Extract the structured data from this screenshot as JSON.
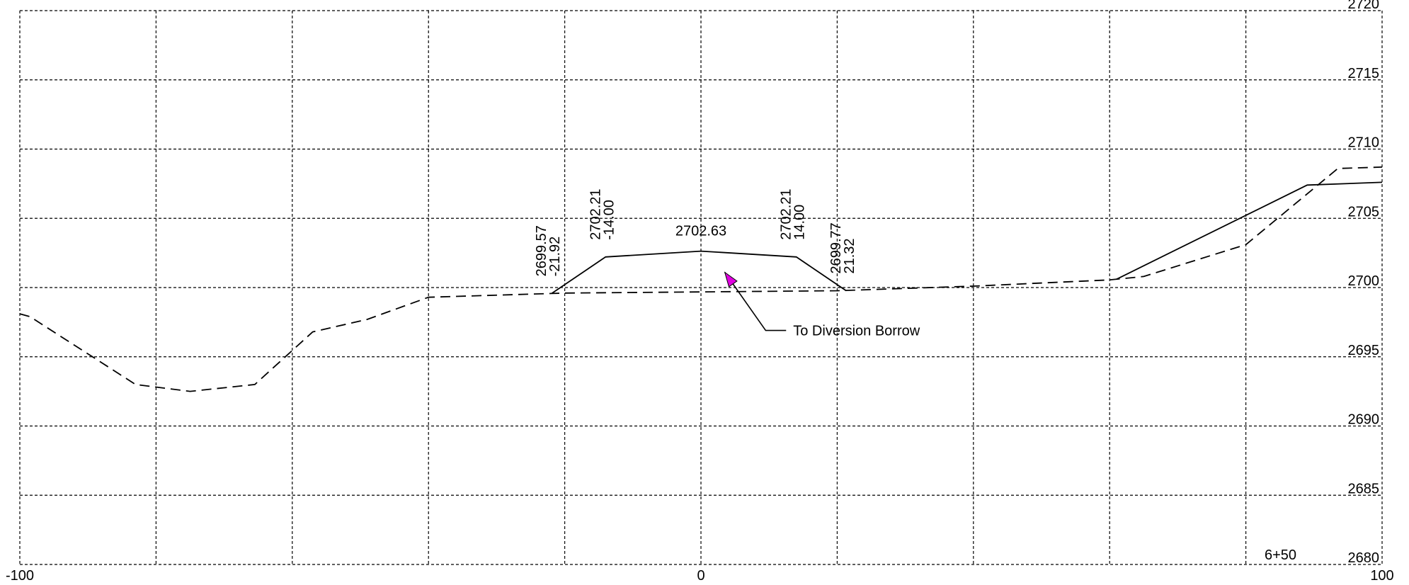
{
  "chart_data": {
    "type": "line",
    "title": "",
    "station": "6+50",
    "xlabel": "",
    "ylabel": "",
    "xlim": [
      -100,
      100
    ],
    "ylim": [
      2680,
      2720
    ],
    "x_ticks": [
      -100,
      0,
      100
    ],
    "y_ticks": [
      2720,
      2715,
      2710,
      2705,
      2700,
      2695,
      2690,
      2685,
      2680
    ],
    "x_grid": [
      -100,
      -80,
      -60,
      -40,
      -20,
      0,
      20,
      40,
      60,
      80,
      100
    ],
    "grid": true,
    "series": [
      {
        "style": "dashed",
        "color": "#000000",
        "points": [
          [
            -100,
            2698.1
          ],
          [
            -98.5,
            2697.9
          ],
          [
            -83,
            2693.0
          ],
          [
            -75,
            2692.5
          ],
          [
            -65.5,
            2693.0
          ],
          [
            -57,
            2696.8
          ],
          [
            -49,
            2697.7
          ],
          [
            -40,
            2699.3
          ],
          [
            -22,
            2699.57
          ],
          [
            -20,
            2699.6
          ],
          [
            20,
            2699.77
          ],
          [
            40,
            2700.1
          ],
          [
            60,
            2700.55
          ],
          [
            65,
            2700.8
          ],
          [
            80,
            2703.1
          ],
          [
            93.5,
            2708.6
          ],
          [
            100,
            2708.7
          ]
        ]
      },
      {
        "style": "solid",
        "color": "#000000",
        "points": [
          [
            -21.92,
            2699.57
          ],
          [
            -14.0,
            2702.21
          ],
          [
            0,
            2702.63
          ],
          [
            14.0,
            2702.21
          ],
          [
            21.32,
            2699.77
          ]
        ]
      },
      {
        "style": "solid",
        "color": "#000000",
        "points": [
          [
            61,
            2700.6
          ],
          [
            89,
            2707.4
          ],
          [
            100,
            2707.6
          ]
        ]
      }
    ],
    "point_labels": [
      {
        "lines": [
          "2699.57",
          "-21.92"
        ],
        "x": -21.92,
        "y": 2699.57,
        "rotated": true
      },
      {
        "lines": [
          "2702.21",
          "-14.00"
        ],
        "x": -14.0,
        "y": 2702.21,
        "rotated": true
      },
      {
        "lines": [
          "2702.63"
        ],
        "x": 0,
        "y": 2702.63,
        "rotated": false
      },
      {
        "lines": [
          "2702.21",
          "14.00"
        ],
        "x": 14.0,
        "y": 2702.21,
        "rotated": true
      },
      {
        "lines": [
          "2699.77",
          "21.32"
        ],
        "x": 21.32,
        "y": 2699.77,
        "rotated": true
      }
    ],
    "annotations": [
      {
        "text": "To Diversion Borrow",
        "arrow_tip": [
          3.5,
          2701.1
        ],
        "leader_elbow": [
          9.5,
          2696.9
        ],
        "leader_end": [
          12.5,
          2696.9
        ],
        "arrow_color": "#e000e0"
      }
    ]
  }
}
